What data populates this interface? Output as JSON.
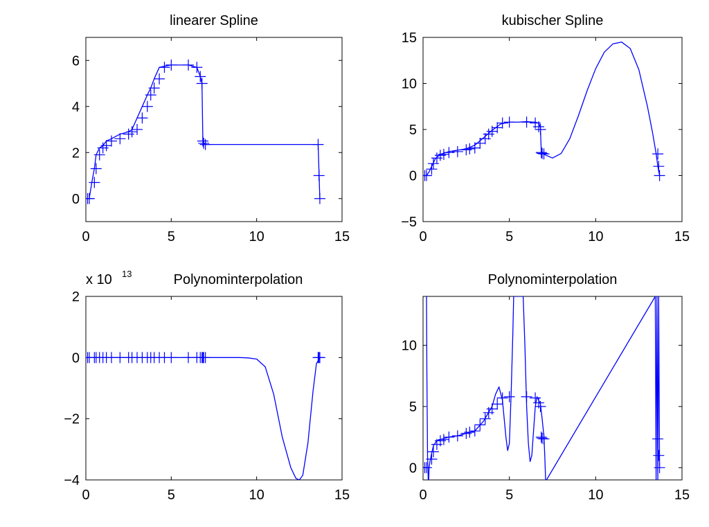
{
  "figure": {
    "background": "#ffffff",
    "line_color": "#0000ff",
    "axes_color": "#000000"
  },
  "chart_data": [
    {
      "type": "line",
      "title": "linearer Spline",
      "xlim": [
        0,
        15
      ],
      "ylim": [
        -1,
        7
      ],
      "xticks": [
        0,
        5,
        10,
        15
      ],
      "yticks": [
        0,
        2,
        4,
        6
      ],
      "xtick_labels": [
        "0",
        "5",
        "10",
        "15"
      ],
      "ytick_labels": [
        "0",
        "2",
        "4",
        "6"
      ],
      "exponent_label": null,
      "grid": false,
      "series": [
        {
          "role": "curve",
          "x": [
            0.1,
            0.2,
            0.35,
            0.5,
            0.6,
            0.8,
            1.0,
            1.2,
            1.5,
            2.0,
            2.5,
            2.7,
            3.0,
            3.3,
            3.6,
            3.8,
            4.0,
            4.3,
            4.6,
            5.0,
            6.0,
            6.5,
            6.7,
            6.8,
            6.85,
            6.9,
            7.0,
            13.6,
            13.7
          ],
          "y": [
            0.0,
            0.0,
            0.7,
            1.3,
            1.9,
            2.2,
            2.3,
            2.5,
            2.6,
            2.8,
            2.9,
            3.0,
            3.5,
            4.0,
            4.5,
            4.8,
            5.2,
            5.7,
            5.75,
            5.8,
            5.8,
            5.7,
            5.3,
            5.0,
            2.5,
            2.4,
            2.35,
            2.35,
            0.0
          ]
        },
        {
          "role": "markers",
          "marker": "+",
          "x": [
            0.1,
            0.2,
            0.5,
            0.6,
            0.8,
            1.0,
            1.2,
            1.5,
            2.0,
            2.5,
            2.7,
            3.0,
            3.3,
            3.6,
            3.8,
            4.0,
            4.3,
            4.6,
            5.0,
            6.0,
            6.5,
            6.7,
            6.8,
            6.85,
            6.9,
            7.0,
            13.6,
            13.65,
            13.7
          ],
          "y": [
            0.0,
            0.0,
            0.7,
            1.3,
            1.9,
            2.2,
            2.3,
            2.5,
            2.6,
            2.8,
            2.9,
            3.0,
            3.5,
            4.0,
            4.5,
            4.8,
            5.2,
            5.7,
            5.8,
            5.8,
            5.7,
            5.3,
            5.0,
            2.5,
            2.4,
            2.35,
            2.35,
            1.0,
            0.0
          ]
        }
      ]
    },
    {
      "type": "line",
      "title": "kubischer Spline",
      "xlim": [
        0,
        15
      ],
      "ylim": [
        -5,
        15
      ],
      "xticks": [
        0,
        5,
        10,
        15
      ],
      "yticks": [
        -5,
        0,
        5,
        10,
        15
      ],
      "xtick_labels": [
        "0",
        "5",
        "10",
        "15"
      ],
      "ytick_labels": [
        "−5",
        "0",
        "5",
        "10",
        "15"
      ],
      "exponent_label": null,
      "grid": false,
      "series": [
        {
          "role": "curve",
          "x": [
            0.2,
            0.35,
            0.5,
            0.7,
            1.0,
            1.5,
            2.0,
            2.5,
            3.0,
            3.5,
            4.0,
            4.5,
            5.0,
            5.5,
            6.0,
            6.5,
            6.7,
            6.8,
            6.85,
            7.0,
            7.5,
            8.0,
            8.5,
            9.0,
            9.5,
            10.0,
            10.5,
            11.0,
            11.5,
            12.0,
            12.5,
            13.0,
            13.3,
            13.5,
            13.6,
            13.65,
            13.7
          ],
          "y": [
            0.0,
            0.4,
            1.0,
            1.8,
            2.3,
            2.6,
            2.75,
            2.9,
            3.3,
            4.1,
            4.9,
            5.6,
            5.8,
            5.8,
            5.85,
            5.8,
            5.7,
            5.2,
            2.5,
            2.3,
            1.9,
            2.4,
            4.0,
            6.5,
            9.2,
            11.6,
            13.4,
            14.3,
            14.5,
            13.8,
            11.5,
            7.5,
            4.6,
            2.4,
            1.0,
            0.5,
            0.0
          ]
        },
        {
          "role": "markers",
          "marker": "+",
          "x": [
            0.1,
            0.2,
            0.5,
            0.6,
            0.8,
            1.0,
            1.2,
            1.5,
            2.0,
            2.5,
            2.7,
            3.0,
            3.3,
            3.6,
            3.8,
            4.0,
            4.3,
            4.6,
            5.0,
            6.0,
            6.5,
            6.7,
            6.8,
            6.85,
            6.9,
            7.0,
            13.6,
            13.65,
            13.7
          ],
          "y": [
            0.0,
            0.0,
            0.7,
            1.3,
            1.9,
            2.2,
            2.3,
            2.5,
            2.6,
            2.8,
            2.9,
            3.0,
            3.5,
            4.0,
            4.5,
            4.8,
            5.2,
            5.7,
            5.8,
            5.8,
            5.7,
            5.3,
            5.0,
            2.5,
            2.4,
            2.35,
            2.35,
            1.0,
            0.0
          ]
        }
      ]
    },
    {
      "type": "line",
      "title": "Polynominterpolation",
      "xlim": [
        0,
        15
      ],
      "ylim": [
        -4,
        2
      ],
      "xticks": [
        0,
        5,
        10,
        15
      ],
      "yticks": [
        -4,
        -2,
        0,
        2
      ],
      "xtick_labels": [
        "0",
        "5",
        "10",
        "15"
      ],
      "ytick_labels": [
        "−4",
        "−2",
        "0",
        "2"
      ],
      "exponent_label": {
        "base": "x 10",
        "power": "13"
      },
      "grid": false,
      "series": [
        {
          "role": "curve",
          "x": [
            0.1,
            9.0,
            9.5,
            10.0,
            10.5,
            11.0,
            11.5,
            12.0,
            12.3,
            12.5,
            12.7,
            13.0,
            13.3,
            13.5,
            13.7
          ],
          "y": [
            0.0,
            0.0,
            -0.01,
            -0.05,
            -0.3,
            -1.2,
            -2.6,
            -3.6,
            -3.95,
            -4.0,
            -3.85,
            -2.8,
            -1.1,
            -0.2,
            0.0
          ]
        },
        {
          "role": "markers",
          "marker": "+",
          "x": [
            0.1,
            0.2,
            0.5,
            0.6,
            0.8,
            1.0,
            1.2,
            1.5,
            2.0,
            2.5,
            2.7,
            3.0,
            3.3,
            3.6,
            3.8,
            4.0,
            4.3,
            4.6,
            5.0,
            6.0,
            6.5,
            6.7,
            6.8,
            6.85,
            6.9,
            7.0,
            13.6,
            13.65,
            13.7
          ],
          "y": [
            0,
            0,
            0,
            0,
            0,
            0,
            0,
            0,
            0,
            0,
            0,
            0,
            0,
            0,
            0,
            0,
            0,
            0,
            0,
            0,
            0,
            0,
            0,
            0,
            0,
            0,
            0,
            0,
            0
          ]
        }
      ]
    },
    {
      "type": "line",
      "title": "Polynominterpolation",
      "xlim": [
        0,
        15
      ],
      "ylim": [
        -1,
        14
      ],
      "xticks": [
        0,
        5,
        10,
        15
      ],
      "yticks": [
        0,
        5,
        10
      ],
      "xtick_labels": [
        "0",
        "5",
        "10",
        "15"
      ],
      "ytick_labels": [
        "0",
        "5",
        "10"
      ],
      "exponent_label": null,
      "grid": false,
      "series": [
        {
          "role": "curve",
          "x": [
            0.2,
            0.22,
            0.26,
            0.3,
            0.33,
            0.35,
            0.4,
            0.5,
            0.6,
            0.8,
            1.0,
            1.5,
            2.0,
            2.5,
            3.0,
            3.5,
            4.0,
            4.2,
            4.4,
            4.6,
            4.8,
            4.9,
            5.0,
            5.1,
            5.2,
            5.25,
            5.3,
            5.5,
            5.8,
            5.9,
            6.0,
            6.1,
            6.2,
            6.3,
            6.4,
            6.5,
            6.6,
            6.8,
            6.9,
            7.0,
            7.05,
            7.1,
            7.15,
            13.45,
            13.5,
            13.55,
            13.6,
            13.65,
            13.7
          ],
          "y": [
            14.0,
            8.0,
            1.0,
            -1.0,
            -1.0,
            0.0,
            0.5,
            1.2,
            1.8,
            2.2,
            2.3,
            2.5,
            2.6,
            2.8,
            3.0,
            3.8,
            5.0,
            6.0,
            6.6,
            5.5,
            2.5,
            1.4,
            2.0,
            6.0,
            11.0,
            14.0,
            14.0,
            14.0,
            14.0,
            10.0,
            5.0,
            2.0,
            0.5,
            1.0,
            3.0,
            5.0,
            5.8,
            5.2,
            4.0,
            2.6,
            1.0,
            -1.0,
            -1.0,
            14.0,
            -1.0,
            14.0,
            -1.0,
            14.0,
            0.0
          ]
        },
        {
          "role": "markers",
          "marker": "+",
          "x": [
            0.1,
            0.2,
            0.5,
            0.6,
            0.8,
            1.0,
            1.2,
            1.5,
            2.0,
            2.5,
            2.7,
            3.0,
            3.3,
            3.6,
            3.8,
            4.0,
            4.3,
            4.6,
            5.0,
            6.0,
            6.5,
            6.7,
            6.8,
            6.85,
            6.9,
            7.0,
            13.6,
            13.65,
            13.7
          ],
          "y": [
            0.0,
            0.0,
            0.7,
            1.3,
            1.9,
            2.2,
            2.3,
            2.5,
            2.6,
            2.8,
            2.9,
            3.0,
            3.5,
            4.0,
            4.5,
            4.8,
            5.2,
            5.7,
            5.8,
            5.8,
            5.7,
            5.3,
            5.0,
            2.5,
            2.4,
            2.35,
            2.35,
            1.0,
            0.0
          ]
        }
      ]
    }
  ]
}
